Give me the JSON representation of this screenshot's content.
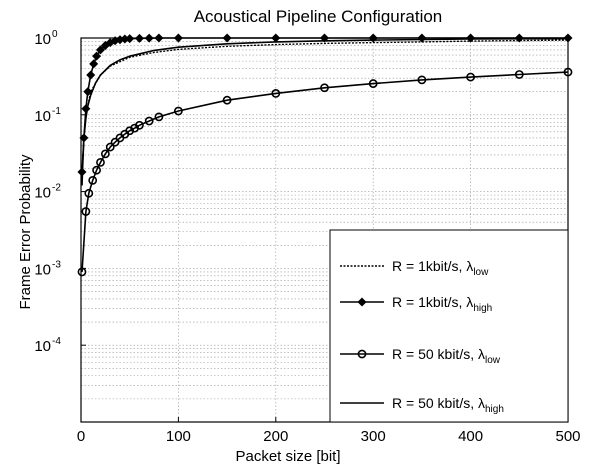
{
  "chart_data": {
    "type": "line",
    "title": "Acoustical Pipeline Configuration",
    "xlabel": "Packet size [bit]",
    "ylabel": "Frame Error Probability",
    "xlim": [
      0,
      500
    ],
    "ylim": [
      1e-05,
      1
    ],
    "yscale": "log",
    "grid": true,
    "legend_position": "bottom-right",
    "x_ticks": [
      {
        "value": 0,
        "label": "0"
      },
      {
        "value": 100,
        "label": "100"
      },
      {
        "value": 200,
        "label": "200"
      },
      {
        "value": 300,
        "label": "300"
      },
      {
        "value": 400,
        "label": "400"
      },
      {
        "value": 500,
        "label": "500"
      }
    ],
    "y_ticks": [
      {
        "value": 1,
        "base": "10",
        "exp": "0"
      },
      {
        "value": 0.1,
        "base": "10",
        "exp": "-1"
      },
      {
        "value": 0.01,
        "base": "10",
        "exp": "-2"
      },
      {
        "value": 0.001,
        "base": "10",
        "exp": "-3"
      },
      {
        "value": 0.0001,
        "base": "10",
        "exp": "-4"
      }
    ],
    "series": [
      {
        "name": "R = 1kbit/s, λ",
        "sub": "low",
        "style": "dotted",
        "marker": "none",
        "x": [
          1,
          3,
          5,
          10,
          20,
          30,
          50,
          75,
          100,
          150,
          200,
          250,
          300,
          350,
          400,
          450,
          500
        ],
        "y": [
          0.015,
          0.05,
          0.1,
          0.2,
          0.33,
          0.43,
          0.56,
          0.65,
          0.71,
          0.78,
          0.82,
          0.85,
          0.87,
          0.89,
          0.91,
          0.925,
          0.94
        ]
      },
      {
        "name": "R = 1kbit/s, λ",
        "sub": "high",
        "style": "solid",
        "marker": "diamond",
        "x": [
          1,
          3,
          5,
          7,
          10,
          13,
          16,
          20,
          25,
          30,
          35,
          40,
          45,
          50,
          60,
          70,
          80,
          100,
          150,
          200,
          250,
          300,
          350,
          400,
          450,
          500
        ],
        "y": [
          0.018,
          0.05,
          0.12,
          0.2,
          0.33,
          0.46,
          0.58,
          0.7,
          0.8,
          0.87,
          0.92,
          0.95,
          0.97,
          0.98,
          0.99,
          0.995,
          1.0,
          1.0,
          1.0,
          1.0,
          1.0,
          1.0,
          1.0,
          1.0,
          1.0,
          1.0
        ]
      },
      {
        "name": "R = 50 kbit/s, λ",
        "sub": "low",
        "style": "solid",
        "marker": "circle",
        "x": [
          1,
          5,
          8,
          12,
          16,
          20,
          25,
          30,
          35,
          40,
          45,
          50,
          55,
          60,
          70,
          80,
          100,
          150,
          200,
          250,
          300,
          350,
          400,
          450,
          500
        ],
        "y": [
          0.0009,
          0.0055,
          0.0095,
          0.014,
          0.019,
          0.024,
          0.031,
          0.038,
          0.044,
          0.05,
          0.056,
          0.062,
          0.067,
          0.073,
          0.083,
          0.094,
          0.112,
          0.155,
          0.19,
          0.225,
          0.255,
          0.285,
          0.31,
          0.335,
          0.36
        ]
      },
      {
        "name": "R = 50 kbit/s, λ",
        "sub": "high",
        "style": "solid",
        "marker": "none",
        "x": [
          1,
          2,
          3,
          5,
          7,
          10,
          15,
          20,
          30,
          40,
          50,
          75,
          100,
          150,
          200,
          250,
          300,
          400,
          500
        ],
        "y": [
          0.012,
          0.025,
          0.05,
          0.09,
          0.13,
          0.18,
          0.26,
          0.33,
          0.44,
          0.52,
          0.58,
          0.69,
          0.76,
          0.84,
          0.89,
          0.92,
          0.94,
          0.97,
          0.98
        ]
      }
    ]
  }
}
